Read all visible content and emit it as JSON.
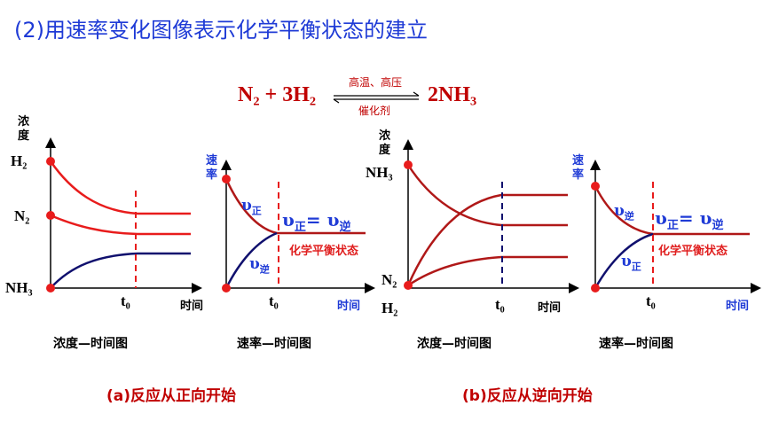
{
  "title": "(2)用速率变化图像表示化学平衡状态的建立",
  "reaction": {
    "left": "N₂ + 3H₂",
    "right": "2NH₃",
    "condition_top": "高温、高压",
    "condition_bottom": "催化剂"
  },
  "panel_a_conc": {
    "y_axis": "浓度",
    "labels": [
      "H₂",
      "N₂",
      "NH₃"
    ],
    "t0": "t₀",
    "x_axis": "时间",
    "caption": "浓度—时间图"
  },
  "panel_a_rate": {
    "y_axis": "速率",
    "v_forward": "υ正",
    "v_reverse": "υ逆",
    "equality": "υ正 = υ逆",
    "balance": "化学平衡状态",
    "t0": "t₀",
    "x_axis": "时间",
    "caption": "速率—时间图"
  },
  "panel_b_conc": {
    "y_axis": "浓度",
    "labels": [
      "NH₃",
      "N₂",
      "H₂"
    ],
    "t0": "t₀",
    "x_axis": "时间",
    "caption": "浓度—时间图"
  },
  "panel_b_rate": {
    "y_axis": "速率",
    "v_reverse": "υ逆",
    "v_forward": "υ正",
    "equality": "υ正 = υ逆",
    "balance": "化学平衡状态",
    "t0": "t₀",
    "x_axis": "时间",
    "caption": "速率—时间图"
  },
  "part_a": "(a)反应从正向开始",
  "part_b": "(b)反应从逆向开始",
  "colors": {
    "red": "#e81c1c",
    "darkred": "#b01818",
    "navy": "#10106e",
    "blue": "#1f3bd6"
  }
}
